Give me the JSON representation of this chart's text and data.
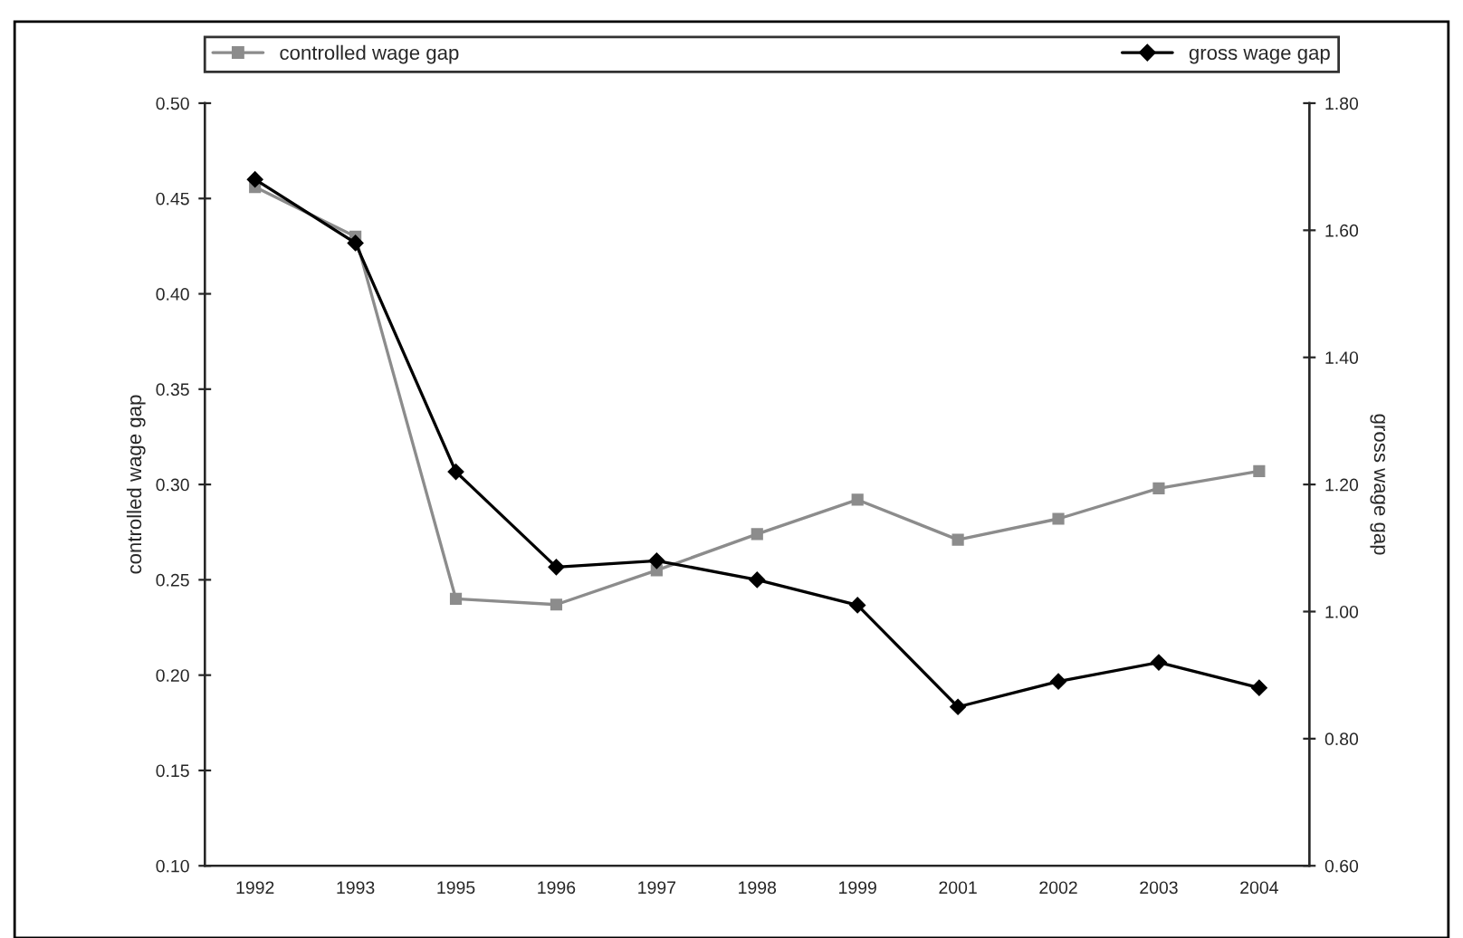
{
  "chart_data": {
    "type": "line",
    "categories": [
      "1992",
      "1993",
      "1995",
      "1996",
      "1997",
      "1998",
      "1999",
      "2001",
      "2002",
      "2003",
      "2004"
    ],
    "series": [
      {
        "name": "controlled wage gap",
        "color": "#8c8c8c",
        "marker": "square",
        "values": [
          0.456,
          0.43,
          0.24,
          0.237,
          0.255,
          0.274,
          0.292,
          0.271,
          0.282,
          0.298,
          0.307
        ]
      },
      {
        "name": "gross wage gap",
        "color": "#000000",
        "marker": "diamond",
        "axis": "y2",
        "values": [
          1.68,
          1.58,
          1.22,
          1.07,
          1.08,
          1.05,
          1.01,
          0.85,
          0.89,
          0.92,
          0.88
        ]
      }
    ],
    "ylabel": "controlled wage gap",
    "y2label": "gross wage gap",
    "ylim": [
      0.1,
      0.5
    ],
    "yticks": [
      {
        "value": 0.1,
        "label": "0.10"
      },
      {
        "value": 0.15,
        "label": "0.15"
      },
      {
        "value": 0.2,
        "label": "0.20"
      },
      {
        "value": 0.25,
        "label": "0.25"
      },
      {
        "value": 0.3,
        "label": "0.30"
      },
      {
        "value": 0.35,
        "label": "0.35"
      },
      {
        "value": 0.4,
        "label": "0.40"
      },
      {
        "value": 0.45,
        "label": "0.45"
      },
      {
        "value": 0.5,
        "label": "0.50"
      }
    ],
    "y2lim": [
      0.6,
      1.8
    ],
    "y2ticks": [
      {
        "value": 0.6,
        "label": "0.60"
      },
      {
        "value": 0.8,
        "label": "0.80"
      },
      {
        "value": 1.0,
        "label": "1.00"
      },
      {
        "value": 1.2,
        "label": "1.20"
      },
      {
        "value": 1.4,
        "label": "1.40"
      },
      {
        "value": 1.6,
        "label": "1.60"
      },
      {
        "value": 1.8,
        "label": "1.80"
      }
    ],
    "grid": false,
    "legend": "top",
    "line_style": "solid"
  }
}
